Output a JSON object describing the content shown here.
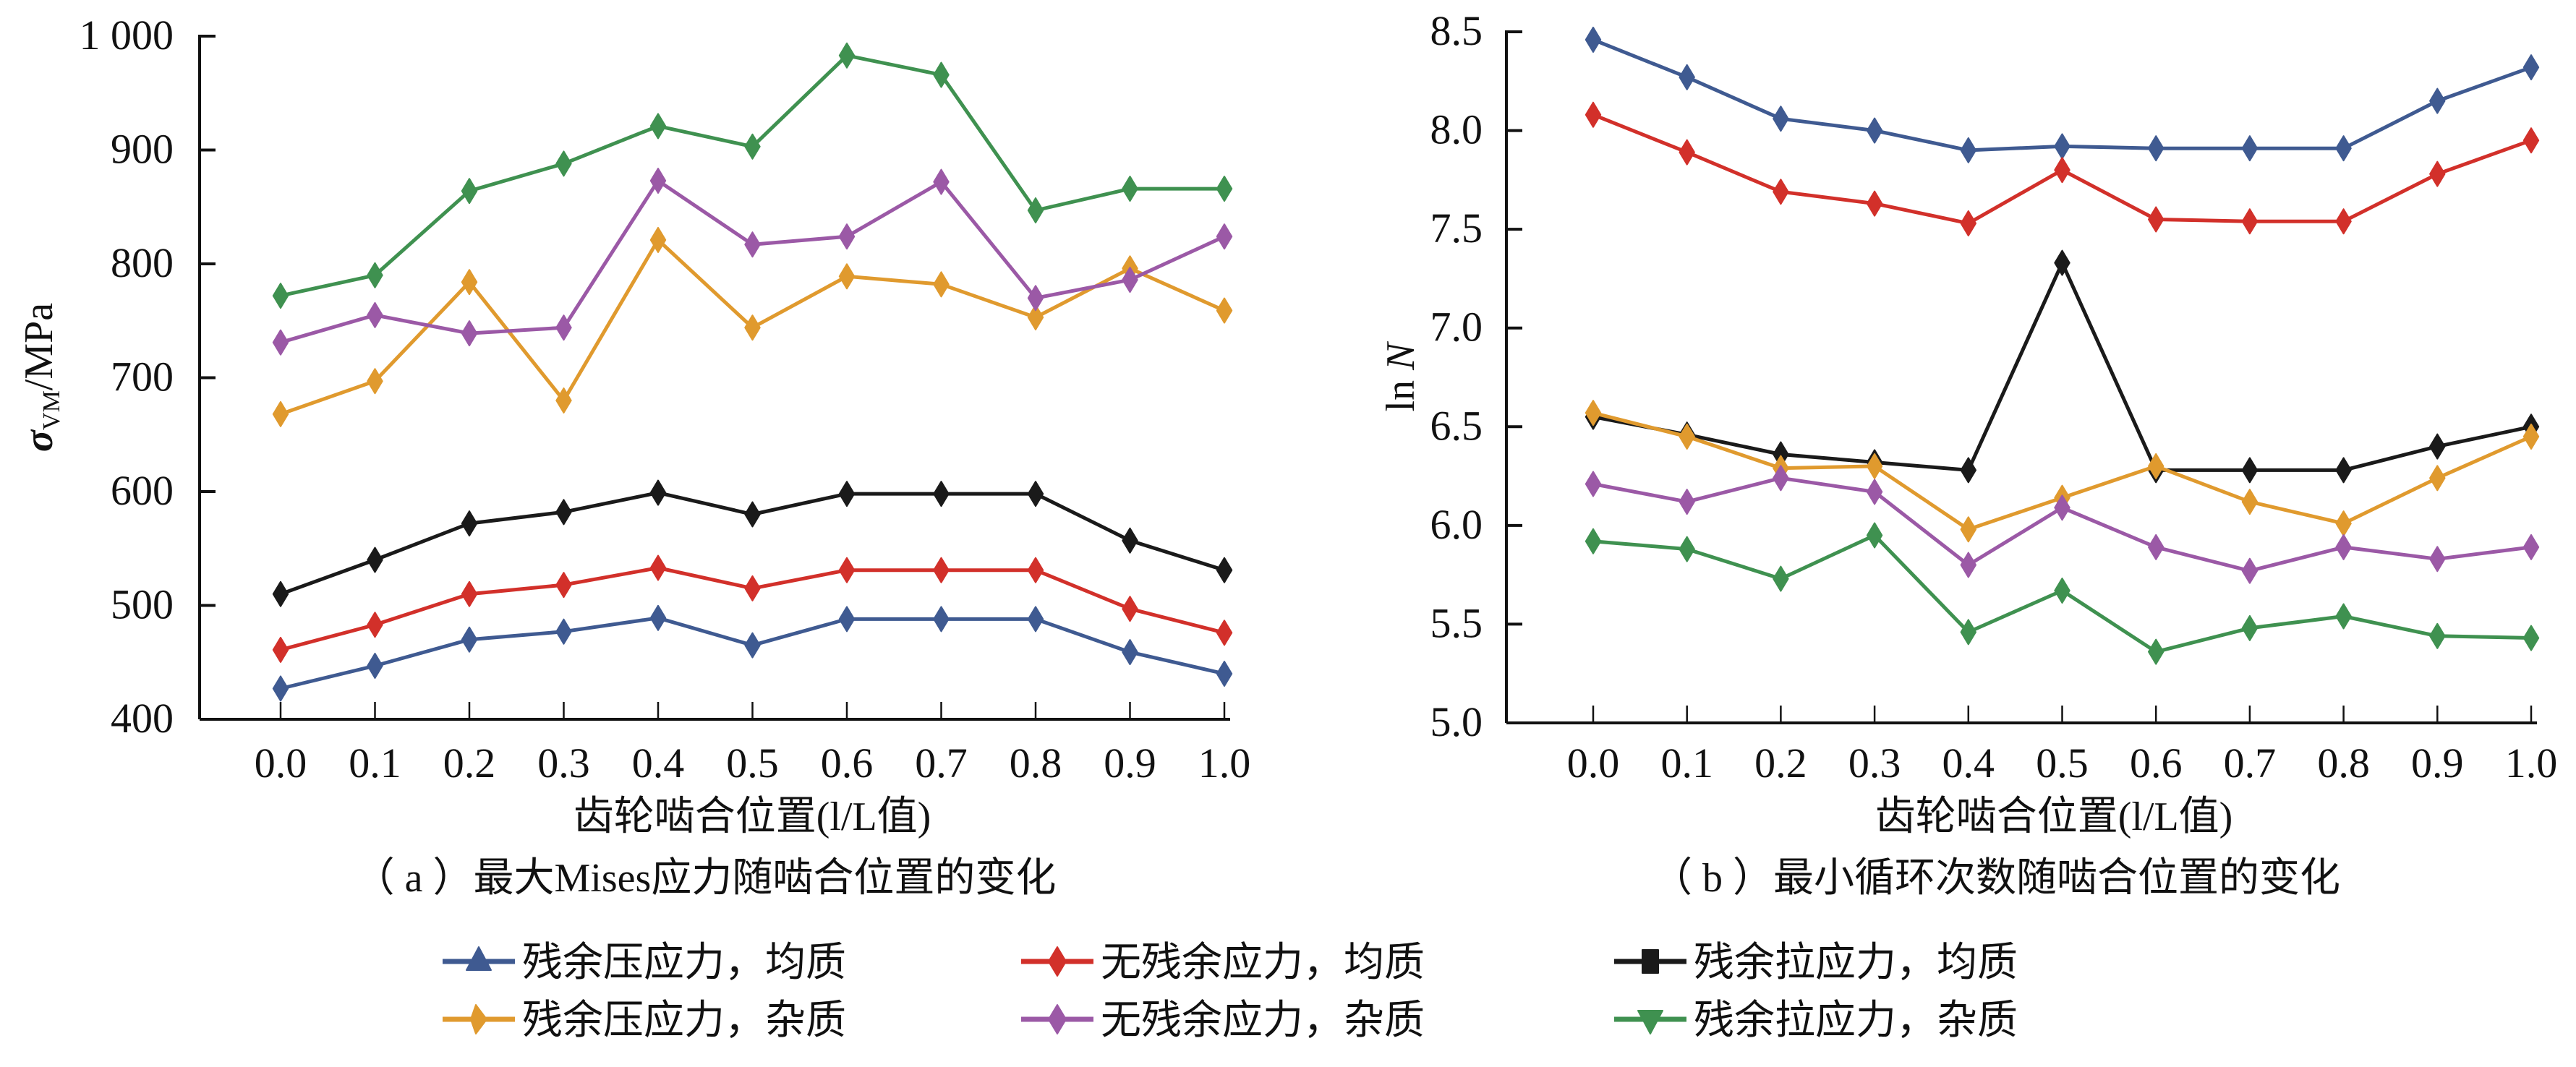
{
  "chart_data": [
    {
      "id": "a",
      "type": "line",
      "caption": "（ a ）最大Mises应力随啮合位置的变化",
      "xlabel": "齿轮啮合位置(l/L值)",
      "ylabel": "σVM/MPa",
      "ylabel_main": "σ",
      "ylabel_sub": "VM",
      "ylabel_unit": "/MPa",
      "x": [
        0.0,
        0.1,
        0.2,
        0.3,
        0.4,
        0.5,
        0.6,
        0.7,
        0.8,
        0.9,
        1.0
      ],
      "x_tick_labels": [
        "0.0",
        "0.1",
        "0.2",
        "0.3",
        "0.4",
        "0.5",
        "0.6",
        "0.7",
        "0.8",
        "0.9",
        "1.0"
      ],
      "ylim": [
        400,
        1000
      ],
      "y_ticks": [
        400,
        500,
        600,
        700,
        800,
        900,
        1000
      ],
      "y_tick_labels": [
        "400",
        "500",
        "600",
        "700",
        "800",
        "900",
        "1 000"
      ],
      "grid": false,
      "series": [
        {
          "name": "残余压应力，均质",
          "key": "comp_homo",
          "values": [
            427,
            447,
            470,
            477,
            489,
            465,
            488,
            488,
            488,
            459,
            440
          ]
        },
        {
          "name": "无残余应力，均质",
          "key": "none_homo",
          "values": [
            461,
            483,
            510,
            518,
            533,
            515,
            531,
            531,
            531,
            497,
            476
          ]
        },
        {
          "name": "残余拉应力，均质",
          "key": "tens_homo",
          "values": [
            510,
            540,
            572,
            582,
            599,
            580,
            598,
            598,
            598,
            557,
            531
          ]
        },
        {
          "name": "残余压应力，杂质",
          "key": "comp_incl",
          "values": [
            668,
            697,
            784,
            680,
            821,
            744,
            789,
            782,
            753,
            796,
            759
          ]
        },
        {
          "name": "无残余应力，杂质",
          "key": "none_incl",
          "values": [
            731,
            755,
            739,
            744,
            873,
            817,
            824,
            872,
            770,
            786,
            824
          ]
        },
        {
          "name": "残余拉应力，杂质",
          "key": "tens_incl",
          "values": [
            772,
            790,
            864,
            888,
            921,
            903,
            983,
            966,
            847,
            866,
            866
          ]
        }
      ]
    },
    {
      "id": "b",
      "type": "line",
      "caption": "（ b ）最小循环次数随啮合位置的变化",
      "xlabel": "齿轮啮合位置(l/L值)",
      "ylabel": "ln N",
      "ylabel_main": "ln ",
      "ylabel_sub": "",
      "ylabel_unit": "N",
      "x": [
        0.0,
        0.1,
        0.2,
        0.3,
        0.4,
        0.5,
        0.6,
        0.7,
        0.8,
        0.9,
        1.0
      ],
      "x_tick_labels": [
        "0.0",
        "0.1",
        "0.2",
        "0.3",
        "0.4",
        "0.5",
        "0.6",
        "0.7",
        "0.8",
        "0.9",
        "1.0"
      ],
      "ylim": [
        5.0,
        8.5
      ],
      "y_ticks": [
        5.0,
        5.5,
        6.0,
        6.5,
        7.0,
        7.5,
        8.0,
        8.5
      ],
      "y_tick_labels": [
        "5.0",
        "5.5",
        "6.0",
        "6.5",
        "7.0",
        "7.5",
        "8.0",
        "8.5"
      ],
      "grid": false,
      "series": [
        {
          "name": "残余压应力，均质",
          "key": "comp_homo",
          "values": [
            8.46,
            8.27,
            8.06,
            8.0,
            7.9,
            7.92,
            7.91,
            7.91,
            7.91,
            8.15,
            8.32
          ]
        },
        {
          "name": "无残余应力，均质",
          "key": "none_homo",
          "values": [
            8.08,
            7.89,
            7.69,
            7.63,
            7.53,
            7.8,
            7.55,
            7.54,
            7.54,
            7.78,
            7.95
          ]
        },
        {
          "name": "残余拉应力，均质",
          "key": "tens_homo",
          "values": [
            6.55,
            6.46,
            6.36,
            6.32,
            6.28,
            7.33,
            6.28,
            6.28,
            6.28,
            6.4,
            6.5
          ]
        },
        {
          "name": "残余压应力，杂质",
          "key": "comp_incl",
          "values": [
            6.57,
            6.45,
            6.29,
            6.3,
            5.98,
            6.14,
            6.3,
            6.12,
            6.01,
            6.24,
            6.45
          ]
        },
        {
          "name": "无残余应力，杂质",
          "key": "none_incl",
          "values": [
            6.21,
            6.12,
            6.24,
            6.17,
            5.8,
            6.09,
            5.89,
            5.77,
            5.89,
            5.83,
            5.89
          ]
        },
        {
          "name": "残余拉应力，杂质",
          "key": "tens_incl",
          "values": [
            5.92,
            5.88,
            5.73,
            5.95,
            5.46,
            5.67,
            5.36,
            5.48,
            5.54,
            5.44,
            5.43
          ]
        }
      ]
    }
  ],
  "legend": {
    "placement": "bottom-center",
    "items": [
      {
        "label": "残余压应力，均质",
        "key": "comp_homo",
        "color": "#3f5a91",
        "marker": "triangle-up"
      },
      {
        "label": "无残余应力，均质",
        "key": "none_homo",
        "color": "#d2302a",
        "marker": "diamond"
      },
      {
        "label": "残余拉应力，均质",
        "key": "tens_homo",
        "color": "#1a1a1a",
        "marker": "square"
      },
      {
        "label": "残余压应力，杂质",
        "key": "comp_incl",
        "color": "#e09a2e",
        "marker": "triangle-left"
      },
      {
        "label": "无残余应力，杂质",
        "key": "none_incl",
        "color": "#9b59a6",
        "marker": "diamond"
      },
      {
        "label": "残余拉应力，杂质",
        "key": "tens_incl",
        "color": "#3f9150",
        "marker": "triangle-down"
      }
    ]
  }
}
